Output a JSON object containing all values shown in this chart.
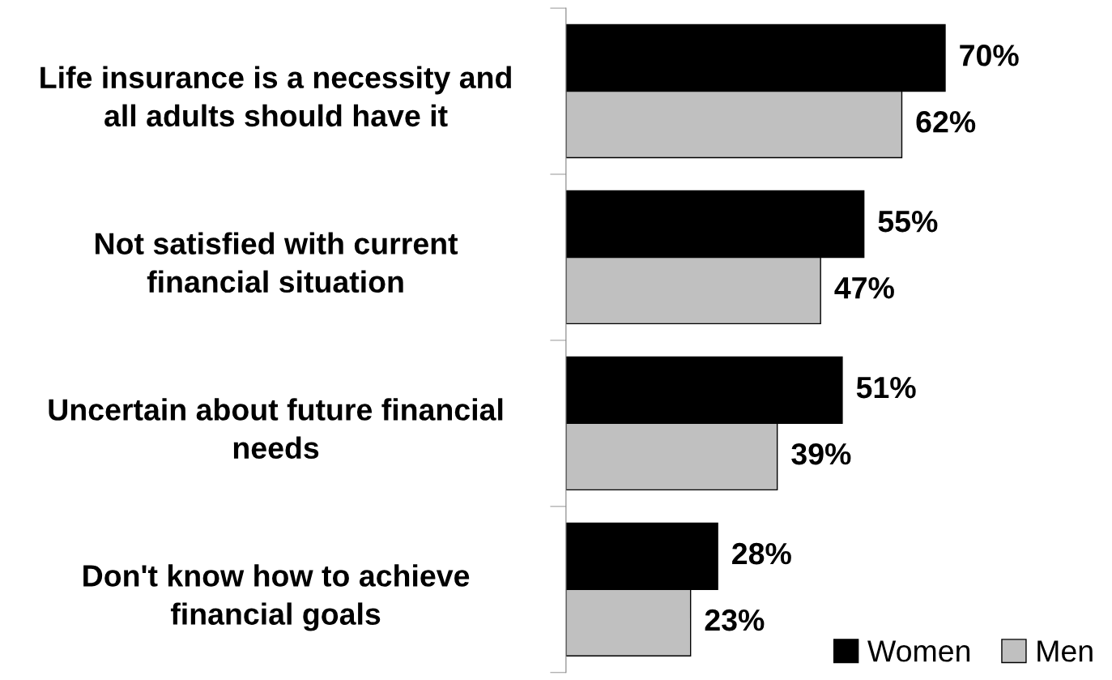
{
  "chart_data": {
    "type": "bar",
    "orientation": "horizontal",
    "categories": [
      "Life insurance is a necessity and\nall adults should have it",
      "Not satisfied with current\nfinancial situation",
      "Uncertain about future financial\nneeds",
      "Don't know how to achieve\nfinancial goals"
    ],
    "series": [
      {
        "name": "Women",
        "color": "#000000",
        "values": [
          70,
          55,
          51,
          28
        ],
        "value_labels": [
          "70%",
          "55%",
          "51%",
          "28%"
        ]
      },
      {
        "name": "Men",
        "color": "#c0c0c0",
        "values": [
          62,
          47,
          39,
          23
        ],
        "value_labels": [
          "62%",
          "47%",
          "39%",
          "23%"
        ]
      }
    ],
    "tick_labels": "y",
    "grid": false,
    "legend": "bottom right"
  }
}
